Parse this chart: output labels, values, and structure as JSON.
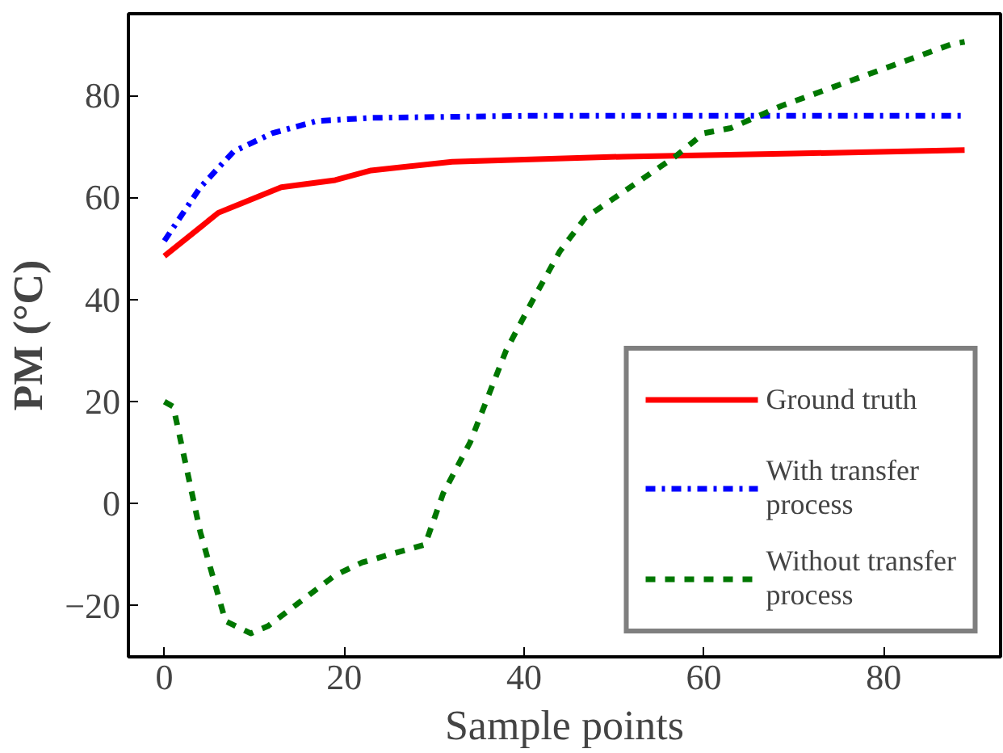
{
  "chart_data": {
    "type": "line",
    "xlabel": "Sample points",
    "ylabel": "PM (°C)",
    "xlim": [
      -4,
      93
    ],
    "ylim": [
      -30,
      96
    ],
    "xticks": [
      0,
      20,
      40,
      60,
      80
    ],
    "yticks": [
      -20,
      0,
      20,
      40,
      60,
      80
    ],
    "grid": false,
    "legend": "bottom right",
    "series": [
      {
        "name": "Ground truth",
        "color": "#ff0000",
        "line_style": "solid",
        "x": [
          0,
          6,
          13,
          19,
          23,
          32,
          51,
          70,
          89
        ],
        "values": [
          48.5,
          57,
          62,
          63.4,
          65.3,
          67,
          68,
          68.6,
          69.3
        ]
      },
      {
        "name": "With transfer process",
        "color": "#0000ff",
        "line_style": "dashdot",
        "x": [
          0,
          4,
          7.7,
          12,
          17,
          23,
          40,
          60,
          89
        ],
        "values": [
          51.5,
          62,
          69,
          72.6,
          75,
          75.6,
          76,
          76,
          76
        ]
      },
      {
        "name": "Without transfer process",
        "color": "#007700",
        "line_style": "dashed",
        "x": [
          0,
          1,
          4,
          6.8,
          9.6,
          11.5,
          19,
          22,
          29,
          31,
          34,
          38,
          41,
          44,
          46.8,
          56.8,
          60,
          63,
          68.7,
          87.5,
          89
        ],
        "values": [
          20,
          19,
          -5.6,
          -23,
          -25.4,
          -24,
          -14,
          -11.5,
          -8,
          2,
          12,
          30,
          40,
          49.5,
          56,
          68,
          72.6,
          73.6,
          78,
          90,
          90.5
        ]
      }
    ]
  }
}
